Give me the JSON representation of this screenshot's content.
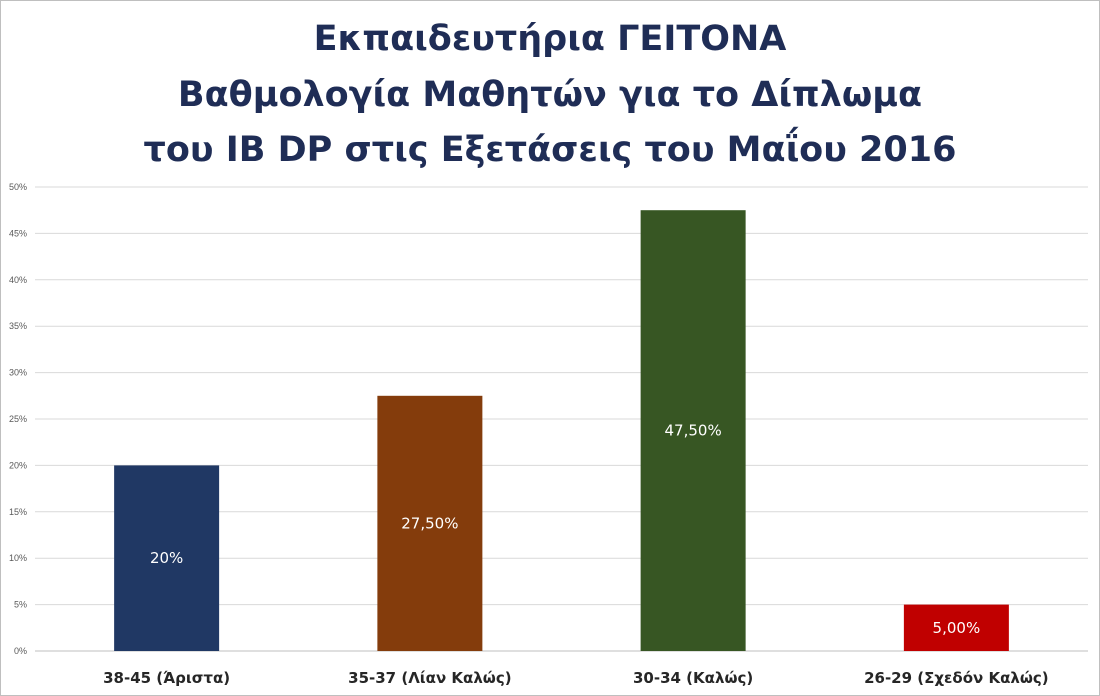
{
  "chart_data": {
    "type": "bar",
    "title_lines": [
      "Εκπαιδευτήρια ΓΕΙΤΟΝΑ",
      "Βαθμολογία Μαθητών για το Δίπλωμα",
      "του IB DP στις Εξετάσεις του Μαΐου 2016"
    ],
    "categories": [
      "38-45 (Άριστα)",
      "35-37 (Λίαν Καλώς)",
      "30-34 (Καλώς)",
      "26-29 (Σχεδόν Καλώς)"
    ],
    "values": [
      20,
      27.5,
      47.5,
      5
    ],
    "data_labels": [
      "20%",
      "27,50%",
      "47,50%",
      "5,00%"
    ],
    "colors": [
      "#203864",
      "#843c0c",
      "#375623",
      "#c00000"
    ],
    "yticks": [
      "0%",
      "5%",
      "10%",
      "15%",
      "20%",
      "25%",
      "30%",
      "35%",
      "40%",
      "45%",
      "50%"
    ],
    "ylim": [
      0,
      50
    ],
    "grid": true,
    "legend": "none",
    "xlabel": "",
    "ylabel": ""
  }
}
